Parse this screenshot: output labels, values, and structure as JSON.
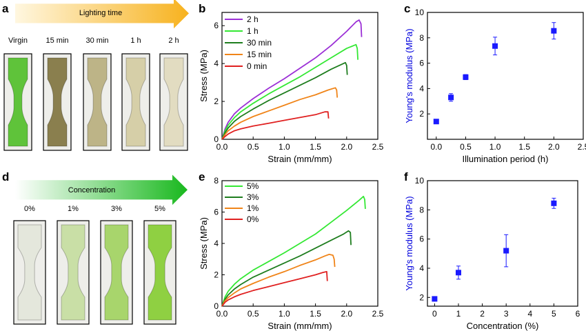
{
  "panels": {
    "a": {
      "letter": "a",
      "arrow_label": "Lighting time",
      "samples": [
        {
          "label": "Virgin",
          "color": "#5fc33a"
        },
        {
          "label": "15 min",
          "color": "#8a7f4e"
        },
        {
          "label": "30 min",
          "color": "#bdb487"
        },
        {
          "label": "1 h",
          "color": "#d6cfa8"
        },
        {
          "label": "2 h",
          "color": "#e2dcc1"
        }
      ]
    },
    "d": {
      "letter": "d",
      "arrow_label": "Concentration",
      "samples": [
        {
          "label": "0%",
          "color": "#e4e7dc"
        },
        {
          "label": "1%",
          "color": "#c9dfa6"
        },
        {
          "label": "3%",
          "color": "#a8d56c"
        },
        {
          "label": "5%",
          "color": "#8fd042"
        }
      ]
    }
  },
  "chart_data": [
    {
      "id": "b",
      "letter": "b",
      "type": "line",
      "xlabel": "Strain (mm/mm)",
      "ylabel": "Stress (MPa)",
      "xlim": [
        0,
        2.5
      ],
      "ylim": [
        0,
        6.7
      ],
      "xticks": [
        0.0,
        0.5,
        1.0,
        1.5,
        2.0,
        2.5
      ],
      "yticks": [
        0,
        2,
        4,
        6
      ],
      "legend_position": "top-left",
      "series": [
        {
          "name": "2 h",
          "color": "#9b2fd6",
          "x": [
            0,
            0.05,
            0.1,
            0.2,
            0.3,
            0.5,
            0.75,
            1.0,
            1.25,
            1.5,
            1.75,
            2.0,
            2.15,
            2.2,
            2.23,
            2.24
          ],
          "y": [
            0,
            0.55,
            0.9,
            1.35,
            1.65,
            2.15,
            2.7,
            3.2,
            3.75,
            4.3,
            4.95,
            5.7,
            6.2,
            6.3,
            6.1,
            5.4
          ]
        },
        {
          "name": "1 h",
          "color": "#33e833",
          "x": [
            0,
            0.05,
            0.1,
            0.2,
            0.3,
            0.5,
            0.75,
            1.0,
            1.25,
            1.5,
            1.75,
            2.0,
            2.15,
            2.17,
            2.18
          ],
          "y": [
            0,
            0.45,
            0.75,
            1.15,
            1.45,
            1.9,
            2.4,
            2.85,
            3.3,
            3.8,
            4.3,
            4.8,
            5.0,
            4.8,
            4.2
          ]
        },
        {
          "name": "30 min",
          "color": "#1e7d1e",
          "x": [
            0,
            0.05,
            0.1,
            0.2,
            0.3,
            0.5,
            0.75,
            1.0,
            1.25,
            1.5,
            1.75,
            1.98,
            2.0,
            2.01
          ],
          "y": [
            0,
            0.35,
            0.6,
            0.95,
            1.2,
            1.6,
            2.05,
            2.45,
            2.85,
            3.25,
            3.7,
            4.05,
            3.9,
            3.4
          ]
        },
        {
          "name": "15 min",
          "color": "#f08418",
          "x": [
            0,
            0.05,
            0.1,
            0.2,
            0.3,
            0.5,
            0.75,
            1.0,
            1.25,
            1.5,
            1.7,
            1.82,
            1.84,
            1.85
          ],
          "y": [
            0,
            0.25,
            0.45,
            0.7,
            0.9,
            1.2,
            1.5,
            1.8,
            2.1,
            2.35,
            2.6,
            2.72,
            2.6,
            2.2
          ]
        },
        {
          "name": "0 min",
          "color": "#e02020",
          "x": [
            0,
            0.05,
            0.1,
            0.2,
            0.3,
            0.5,
            0.75,
            1.0,
            1.25,
            1.5,
            1.65,
            1.7,
            1.71
          ],
          "y": [
            0,
            0.15,
            0.28,
            0.45,
            0.55,
            0.7,
            0.85,
            1.0,
            1.15,
            1.3,
            1.45,
            1.45,
            1.1
          ]
        }
      ]
    },
    {
      "id": "c",
      "letter": "c",
      "type": "scatter",
      "xlabel": "Illumination period (h)",
      "ylabel": "Young's modulus (MPa)",
      "xlim": [
        -0.15,
        2.5
      ],
      "ylim": [
        0,
        10
      ],
      "xticks": [
        0.0,
        0.5,
        1.0,
        1.5,
        2.0,
        2.5
      ],
      "yticks": [
        2,
        4,
        6,
        8,
        10
      ],
      "marker_color": "#1a1aff",
      "points": [
        {
          "x": 0,
          "y": 1.4,
          "err": 0.1
        },
        {
          "x": 0.25,
          "y": 3.3,
          "err": 0.3
        },
        {
          "x": 0.5,
          "y": 4.9,
          "err": 0.2
        },
        {
          "x": 1.0,
          "y": 7.35,
          "err": 0.7
        },
        {
          "x": 2.0,
          "y": 8.55,
          "err": 0.65
        }
      ]
    },
    {
      "id": "e",
      "letter": "e",
      "type": "line",
      "xlabel": "Strain (mm/mm)",
      "ylabel": "Stress (MPa)",
      "xlim": [
        0,
        2.5
      ],
      "ylim": [
        0,
        8
      ],
      "xticks": [
        0.0,
        0.5,
        1.0,
        1.5,
        2.0,
        2.5
      ],
      "yticks": [
        0,
        2,
        4,
        6,
        8
      ],
      "legend_position": "top-left",
      "series": [
        {
          "name": "5%",
          "color": "#33e833",
          "x": [
            0,
            0.05,
            0.1,
            0.2,
            0.3,
            0.5,
            0.75,
            1.0,
            1.25,
            1.5,
            1.75,
            2.0,
            2.2,
            2.27,
            2.29,
            2.3
          ],
          "y": [
            0,
            0.6,
            0.95,
            1.4,
            1.75,
            2.3,
            2.85,
            3.4,
            4.0,
            4.6,
            5.35,
            6.1,
            6.75,
            7.0,
            6.8,
            6.2
          ]
        },
        {
          "name": "3%",
          "color": "#1e7d1e",
          "x": [
            0,
            0.05,
            0.1,
            0.2,
            0.3,
            0.5,
            0.75,
            1.0,
            1.25,
            1.5,
            1.75,
            1.95,
            2.03,
            2.06,
            2.07
          ],
          "y": [
            0,
            0.45,
            0.72,
            1.1,
            1.38,
            1.85,
            2.3,
            2.75,
            3.2,
            3.7,
            4.2,
            4.6,
            4.8,
            4.7,
            3.9
          ]
        },
        {
          "name": "1%",
          "color": "#f08418",
          "x": [
            0,
            0.05,
            0.1,
            0.2,
            0.3,
            0.5,
            0.75,
            1.0,
            1.25,
            1.5,
            1.65,
            1.72,
            1.78,
            1.8,
            1.81
          ],
          "y": [
            0,
            0.35,
            0.55,
            0.85,
            1.1,
            1.45,
            1.85,
            2.2,
            2.6,
            2.95,
            3.2,
            3.3,
            3.25,
            3.0,
            2.5
          ]
        },
        {
          "name": "0%",
          "color": "#e02020",
          "x": [
            0,
            0.05,
            0.1,
            0.2,
            0.3,
            0.5,
            0.75,
            1.0,
            1.25,
            1.5,
            1.62,
            1.68,
            1.69
          ],
          "y": [
            0,
            0.25,
            0.4,
            0.6,
            0.75,
            1.0,
            1.25,
            1.5,
            1.75,
            2.0,
            2.15,
            2.2,
            1.6
          ]
        }
      ]
    },
    {
      "id": "f",
      "letter": "f",
      "type": "scatter",
      "xlabel": "Concentration (%)",
      "ylabel": "Young's modulus (MPa)",
      "xlim": [
        -0.3,
        6
      ],
      "ylim": [
        1.4,
        10
      ],
      "xticks": [
        0,
        1,
        2,
        3,
        4,
        5,
        6
      ],
      "yticks": [
        2,
        4,
        6,
        8,
        10
      ],
      "marker_color": "#1a1aff",
      "points": [
        {
          "x": 0,
          "y": 1.9,
          "err": 0.05
        },
        {
          "x": 1,
          "y": 3.7,
          "err": 0.45
        },
        {
          "x": 3,
          "y": 5.2,
          "err": 1.1
        },
        {
          "x": 5,
          "y": 8.45,
          "err": 0.35
        }
      ]
    }
  ]
}
